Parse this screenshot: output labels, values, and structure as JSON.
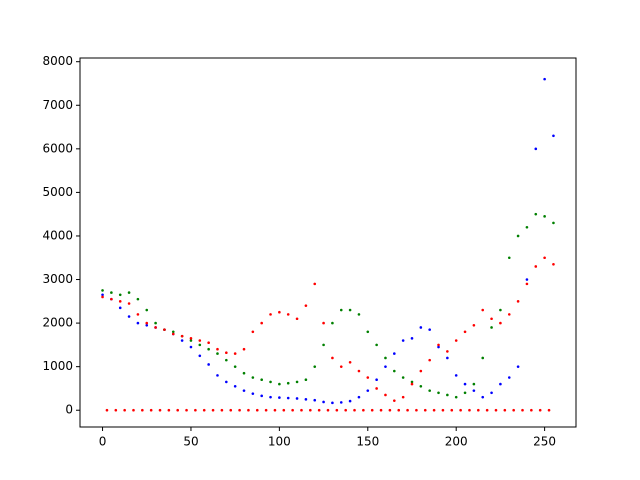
{
  "chart_data": {
    "type": "scatter",
    "xlim": [
      -12.75,
      267.75
    ],
    "ylim": [
      -385,
      8085
    ],
    "xticks": [
      0,
      50,
      100,
      150,
      200,
      250
    ],
    "yticks": [
      0,
      1000,
      2000,
      3000,
      4000,
      5000,
      6000,
      7000,
      8000
    ],
    "series": [
      {
        "color": "#0000ff",
        "x": [
          0,
          5,
          10,
          15,
          20,
          25,
          30,
          35,
          40,
          45,
          50,
          55,
          60,
          65,
          70,
          75,
          80,
          85,
          90,
          95,
          100,
          105,
          110,
          115,
          120,
          125,
          130,
          135,
          140,
          145,
          150,
          155,
          160,
          165,
          170,
          175,
          180,
          185,
          190,
          195,
          200,
          205,
          210,
          215,
          220,
          225,
          230,
          235,
          240,
          245,
          250,
          255
        ],
        "values": [
          2650,
          2550,
          2350,
          2150,
          2000,
          1950,
          1900,
          1850,
          1750,
          1600,
          1450,
          1250,
          1050,
          800,
          650,
          550,
          450,
          380,
          330,
          300,
          290,
          280,
          270,
          250,
          230,
          190,
          170,
          180,
          210,
          300,
          450,
          700,
          1000,
          1300,
          1600,
          1650,
          1900,
          1850,
          1450,
          1200,
          800,
          600,
          450,
          300,
          400,
          600,
          750,
          1000,
          3000,
          6000,
          7600,
          6300
        ]
      },
      {
        "color": "#008000",
        "x": [
          0,
          5,
          10,
          15,
          20,
          25,
          30,
          35,
          40,
          45,
          50,
          55,
          60,
          65,
          70,
          75,
          80,
          85,
          90,
          95,
          100,
          105,
          110,
          115,
          120,
          125,
          130,
          135,
          140,
          145,
          150,
          155,
          160,
          165,
          170,
          175,
          180,
          185,
          190,
          195,
          200,
          205,
          210,
          215,
          220,
          225,
          230,
          235,
          240,
          245,
          250,
          255
        ],
        "values": [
          2750,
          2700,
          2650,
          2700,
          2550,
          2300,
          2000,
          1850,
          1800,
          1700,
          1600,
          1500,
          1400,
          1300,
          1150,
          1000,
          850,
          750,
          700,
          650,
          600,
          620,
          650,
          700,
          1000,
          1500,
          2000,
          2300,
          2300,
          2200,
          1800,
          1500,
          1200,
          900,
          750,
          650,
          550,
          450,
          400,
          350,
          300,
          400,
          600,
          1200,
          1900,
          2300,
          3500,
          4000,
          4200,
          4500,
          4450,
          4300
        ]
      },
      {
        "color": "#ff0000",
        "x": [
          0,
          5,
          10,
          15,
          20,
          25,
          30,
          35,
          40,
          45,
          50,
          55,
          60,
          65,
          70,
          75,
          80,
          85,
          90,
          95,
          100,
          105,
          110,
          115,
          120,
          125,
          130,
          135,
          140,
          145,
          150,
          155,
          160,
          165,
          170,
          175,
          180,
          185,
          190,
          195,
          200,
          205,
          210,
          215,
          220,
          225,
          230,
          235,
          240,
          245,
          250,
          255
        ],
        "values": [
          2600,
          2550,
          2500,
          2450,
          2200,
          2000,
          1900,
          1850,
          1750,
          1700,
          1650,
          1600,
          1550,
          1400,
          1320,
          1300,
          1400,
          1800,
          2000,
          2200,
          2250,
          2200,
          2100,
          2400,
          2900,
          2000,
          1200,
          1000,
          1100,
          900,
          750,
          500,
          350,
          220,
          300,
          600,
          900,
          1150,
          1500,
          1350,
          1600,
          1800,
          1950,
          2300,
          2100,
          2000,
          2200,
          2500,
          2900,
          3300,
          3500,
          3350
        ]
      },
      {
        "color": "#ff0000",
        "x": [
          2.5,
          7.5,
          12.5,
          17.5,
          22.5,
          27.5,
          32.5,
          37.5,
          42.5,
          47.5,
          52.5,
          57.5,
          62.5,
          67.5,
          72.5,
          77.5,
          82.5,
          87.5,
          92.5,
          97.5,
          102.5,
          107.5,
          112.5,
          117.5,
          122.5,
          127.5,
          132.5,
          137.5,
          142.5,
          147.5,
          152.5,
          157.5,
          162.5,
          167.5,
          172.5,
          177.5,
          182.5,
          187.5,
          192.5,
          197.5,
          202.5,
          207.5,
          212.5,
          217.5,
          222.5,
          227.5,
          232.5,
          237.5,
          242.5,
          247.5,
          252.5
        ],
        "values": [
          0,
          0,
          0,
          0,
          0,
          0,
          0,
          0,
          0,
          0,
          0,
          0,
          0,
          0,
          0,
          0,
          0,
          0,
          0,
          0,
          0,
          0,
          0,
          0,
          0,
          0,
          0,
          0,
          0,
          0,
          0,
          0,
          0,
          0,
          0,
          0,
          0,
          0,
          0,
          0,
          0,
          0,
          0,
          0,
          0,
          0,
          0,
          0,
          0,
          0,
          0
        ]
      }
    ]
  }
}
